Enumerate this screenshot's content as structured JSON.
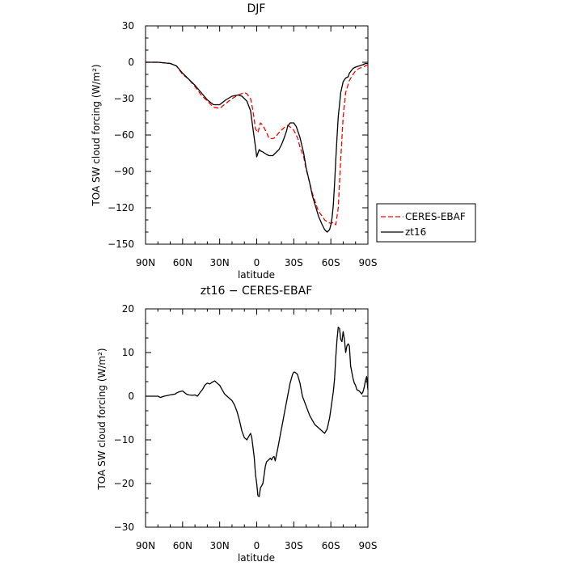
{
  "chart_data": [
    {
      "type": "line",
      "title": "DJF",
      "xlabel": "latitude",
      "ylabel": "TOA SW cloud forcing (W/m²)",
      "xlim": [
        90,
        -90
      ],
      "ylim": [
        -150,
        30
      ],
      "xticks": [
        90,
        60,
        30,
        0,
        -30,
        -60,
        -90
      ],
      "xtick_labels": [
        "90N",
        "60N",
        "30N",
        "0",
        "30S",
        "60S",
        "90S"
      ],
      "yticks": [
        30,
        0,
        -30,
        -60,
        -90,
        -120,
        -150
      ],
      "ytick_labels": [
        "30",
        "0",
        "−30",
        "−60",
        "−90",
        "−120",
        "−150"
      ],
      "legend_position": "right",
      "series": [
        {
          "name": "CERES-EBAF",
          "color": "#ff0000",
          "dash": "dashed",
          "x": [
            90,
            80,
            70,
            65,
            60,
            55,
            50,
            45,
            40,
            35,
            30,
            25,
            20,
            15,
            10,
            8,
            5,
            3,
            1,
            -1,
            -3,
            -5,
            -8,
            -10,
            -13,
            -15,
            -18,
            -20,
            -22,
            -25,
            -28,
            -30,
            -33,
            -35,
            -38,
            -40,
            -43,
            -45,
            -48,
            -50,
            -53,
            -55,
            -58,
            -60,
            -62,
            -64,
            -66,
            -68,
            -70,
            -72,
            -75,
            -78,
            -80,
            -83,
            -86,
            -88,
            -90
          ],
          "y": [
            0,
            0,
            -1,
            -3,
            -10,
            -14,
            -20,
            -27,
            -32,
            -37,
            -38,
            -34,
            -30,
            -27,
            -25,
            -26,
            -30,
            -40,
            -55,
            -58,
            -50,
            -52,
            -58,
            -63,
            -63,
            -62,
            -58,
            -56,
            -54,
            -52,
            -54,
            -56,
            -62,
            -70,
            -78,
            -88,
            -100,
            -108,
            -117,
            -123,
            -127,
            -130,
            -132,
            -133,
            -132,
            -134,
            -120,
            -80,
            -45,
            -25,
            -15,
            -10,
            -7,
            -5,
            -4,
            -3,
            -2
          ]
        },
        {
          "name": "zt16",
          "color": "#000000",
          "dash": "solid",
          "x": [
            90,
            80,
            70,
            65,
            60,
            55,
            50,
            45,
            40,
            35,
            30,
            25,
            20,
            15,
            12,
            10,
            8,
            5,
            3,
            1,
            0,
            -1,
            -2,
            -3,
            -5,
            -8,
            -10,
            -13,
            -15,
            -18,
            -20,
            -22,
            -24,
            -25,
            -27,
            -30,
            -32,
            -35,
            -38,
            -40,
            -43,
            -45,
            -48,
            -50,
            -53,
            -55,
            -57,
            -58,
            -59,
            -60,
            -61,
            -62,
            -63,
            -64,
            -65,
            -66,
            -67,
            -68,
            -70,
            -72,
            -74,
            -75,
            -78,
            -80,
            -83,
            -86,
            -88,
            -90
          ],
          "y": [
            0,
            0,
            -1,
            -3,
            -9,
            -14,
            -19,
            -25,
            -31,
            -35,
            -35,
            -31,
            -28,
            -27,
            -28,
            -30,
            -32,
            -40,
            -55,
            -70,
            -78,
            -75,
            -72,
            -73,
            -74,
            -76,
            -77,
            -77,
            -75,
            -72,
            -68,
            -63,
            -57,
            -53,
            -50,
            -50,
            -53,
            -62,
            -75,
            -87,
            -100,
            -110,
            -120,
            -127,
            -134,
            -138,
            -140,
            -139,
            -138,
            -134,
            -128,
            -118,
            -100,
            -80,
            -62,
            -45,
            -35,
            -25,
            -16,
            -13,
            -12,
            -9,
            -5,
            -4,
            -3,
            -2,
            -1,
            -1
          ]
        }
      ]
    },
    {
      "type": "line",
      "title": "zt16 − CERES-EBAF",
      "xlabel": "latitude",
      "ylabel": "TOA SW cloud forcing (W/m²)",
      "xlim": [
        90,
        -90
      ],
      "ylim": [
        -30,
        20
      ],
      "xticks": [
        90,
        60,
        30,
        0,
        -30,
        -60,
        -90
      ],
      "xtick_labels": [
        "90N",
        "60N",
        "30N",
        "0",
        "30S",
        "60S",
        "90S"
      ],
      "yticks": [
        20,
        10,
        0,
        -10,
        -20,
        -30
      ],
      "ytick_labels": [
        "20",
        "10",
        "0",
        "−10",
        "−20",
        "−30"
      ],
      "series": [
        {
          "color": "#000000",
          "dash": "solid",
          "x": [
            90,
            80,
            78,
            75,
            70,
            66,
            65,
            63,
            60,
            57,
            55,
            52,
            50,
            48,
            46,
            44,
            42,
            40,
            38,
            36,
            34,
            32,
            30,
            28,
            26,
            24,
            22,
            20,
            18,
            16,
            14,
            12,
            10,
            8,
            6,
            5,
            4,
            2,
            1,
            0,
            -1,
            -2,
            -3,
            -4,
            -5,
            -6,
            -7,
            -8,
            -10,
            -11,
            -12,
            -13,
            -14,
            -15,
            -17,
            -19,
            -21,
            -23,
            -25,
            -27,
            -29,
            -30,
            -31,
            -33,
            -35,
            -37,
            -39,
            -41,
            -43,
            -45,
            -47,
            -49,
            -51,
            -53,
            -55,
            -57,
            -59,
            -60,
            -61,
            -62,
            -63,
            -64,
            -65,
            -66,
            -67,
            -68,
            -69,
            -70,
            -71,
            -72,
            -73,
            -74,
            -75,
            -76,
            -77,
            -78,
            -79,
            -80,
            -81,
            -83,
            -85,
            -86,
            -87,
            -88,
            -89,
            -90
          ],
          "y": [
            0,
            0,
            -0.3,
            0,
            0.3,
            0.5,
            0.7,
            1,
            1.2,
            0.5,
            0.3,
            0.2,
            0.3,
            0,
            0.8,
            1.5,
            2.5,
            3,
            2.8,
            3.2,
            3.5,
            3,
            2.5,
            1.5,
            0.5,
            0,
            -0.5,
            -1,
            -2,
            -3.5,
            -5.5,
            -8,
            -9.5,
            -10,
            -9,
            -8.5,
            -9.5,
            -14,
            -18,
            -20,
            -22.8,
            -23,
            -21,
            -20.5,
            -20,
            -18,
            -16,
            -15,
            -14.5,
            -14.2,
            -14.6,
            -14,
            -13.8,
            -14.8,
            -12,
            -9,
            -6,
            -3,
            0,
            3,
            5,
            5.5,
            5.5,
            5,
            3,
            0,
            -1.5,
            -3,
            -4.5,
            -5.5,
            -6.5,
            -7,
            -7.5,
            -8,
            -8.5,
            -7.5,
            -5,
            -3,
            -1,
            1,
            4,
            9,
            13,
            15.8,
            15.5,
            13,
            12.5,
            14.8,
            13,
            10,
            11.5,
            12,
            11.5,
            7,
            5.5,
            4,
            3,
            2.5,
            1.5,
            1.2,
            0.5,
            1,
            2,
            3.5,
            4.5,
            1.5
          ]
        }
      ]
    }
  ]
}
